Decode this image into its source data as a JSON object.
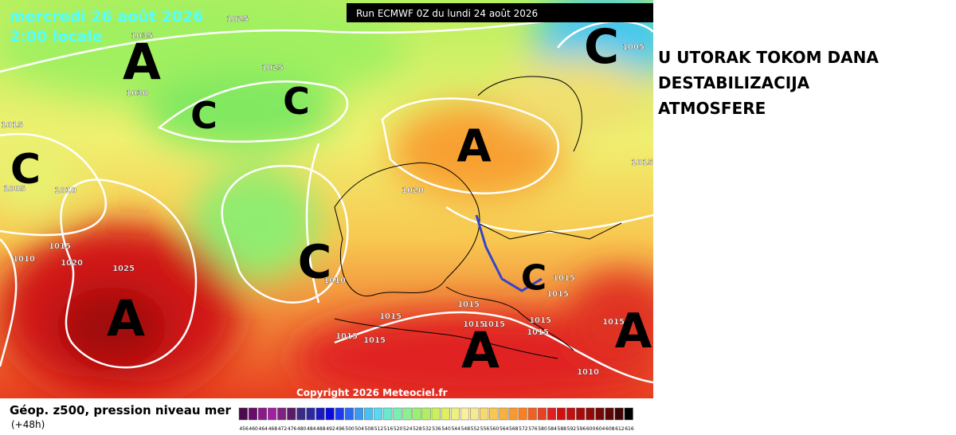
{
  "header": {
    "date": "mercredi 26 août 2026",
    "time": "2:00 locale",
    "run": "Run ECMWF 0Z du lundi 24 août 2026"
  },
  "side_text": [
    "U UTORAK TOKOM DANA",
    "DESTABILIZACIJA",
    "ATMOSFERE"
  ],
  "centers": [
    "A",
    "C",
    "C",
    "C",
    "A",
    "C",
    "A",
    "A",
    "A",
    "C",
    "C"
  ],
  "pressure_labels": [
    "1025",
    "1035",
    "1030",
    "1025",
    "1015",
    "1005",
    "1010",
    "1015",
    "1020",
    "1025",
    "1010",
    "1020",
    "1015",
    "1015",
    "1015",
    "1015",
    "1015",
    "1015",
    "1015",
    "1015",
    "1015",
    "1015",
    "1010",
    "1015",
    "1015",
    "1005",
    "1010"
  ],
  "copyright": "Copyright 2026 Meteociel.fr",
  "caption": {
    "title": "Géop. z500, pression niveau mer",
    "subtitle": "(+48h)"
  },
  "scale": {
    "labels": [
      456,
      460,
      464,
      468,
      472,
      476,
      480,
      484,
      488,
      492,
      496,
      500,
      504,
      508,
      512,
      516,
      520,
      524,
      528,
      532,
      536,
      540,
      544,
      548,
      552,
      556,
      560,
      564,
      568,
      572,
      576,
      580,
      584,
      588,
      592,
      596,
      600,
      604,
      608,
      612,
      616
    ],
    "colors": [
      "#4b0a4b",
      "#6a0a6a",
      "#8a1a8a",
      "#a020a0",
      "#802080",
      "#5a1a6a",
      "#3a2a8a",
      "#2a2aa0",
      "#1a1ac0",
      "#0a0ae0",
      "#1a3af0",
      "#2a6af0",
      "#3a9af0",
      "#4ac0f0",
      "#5ad8f0",
      "#6ae8d0",
      "#7af0b0",
      "#8af090",
      "#9af070",
      "#b0f060",
      "#c8f060",
      "#e0f060",
      "#f0f080",
      "#f8f0a0",
      "#f8e890",
      "#f8d870",
      "#f8c850",
      "#f8b040",
      "#f89830",
      "#f88020",
      "#f06020",
      "#e84020",
      "#e02020",
      "#d01010",
      "#c01010",
      "#a80a0a",
      "#900a0a",
      "#780808",
      "#600606",
      "#400404",
      "#000000"
    ]
  }
}
